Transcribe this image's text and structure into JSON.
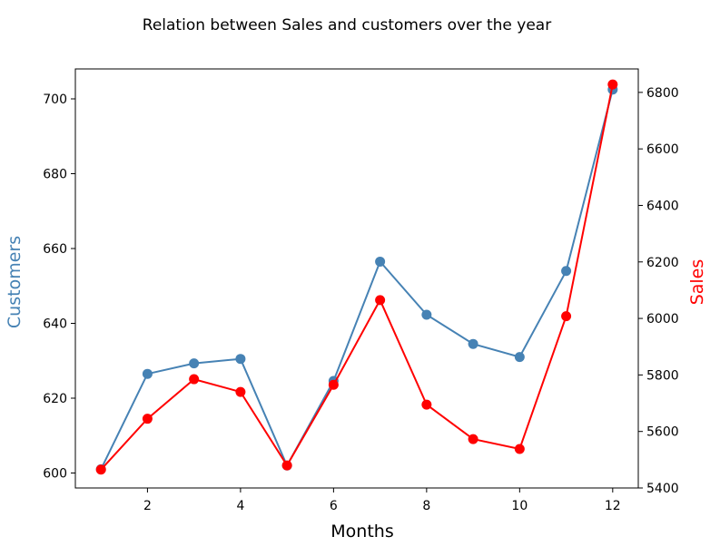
{
  "chart_data": {
    "type": "line",
    "title": "Relation between Sales and customers over the year",
    "xlabel": "Months",
    "y_left_label": "Customers",
    "y_right_label": "Sales",
    "x": [
      1,
      2,
      3,
      4,
      5,
      6,
      7,
      8,
      9,
      10,
      11,
      12
    ],
    "xlim": [
      0.45,
      12.55
    ],
    "x_ticks": [
      2,
      4,
      6,
      8,
      10,
      12
    ],
    "y_left_lim": [
      596,
      708
    ],
    "y_left_ticks": [
      600,
      620,
      640,
      660,
      680,
      700
    ],
    "y_right_lim": [
      5400,
      6883
    ],
    "y_right_ticks": [
      5400,
      5600,
      5800,
      6000,
      6200,
      6400,
      6600,
      6800
    ],
    "grid": false,
    "series": [
      {
        "name": "Customers",
        "axis": "left",
        "color": "#4682b4",
        "marker": "circle",
        "values": [
          601,
          626.5,
          629.3,
          630.5,
          602,
          624.6,
          656.5,
          642.3,
          634.5,
          631,
          654,
          702.5
        ]
      },
      {
        "name": "Sales",
        "axis": "right",
        "color": "#ff0000",
        "marker": "circle",
        "values": [
          5465,
          5645,
          5785,
          5740,
          5480,
          5765,
          6065,
          5695,
          5573,
          5538,
          6008,
          6828
        ]
      }
    ]
  }
}
